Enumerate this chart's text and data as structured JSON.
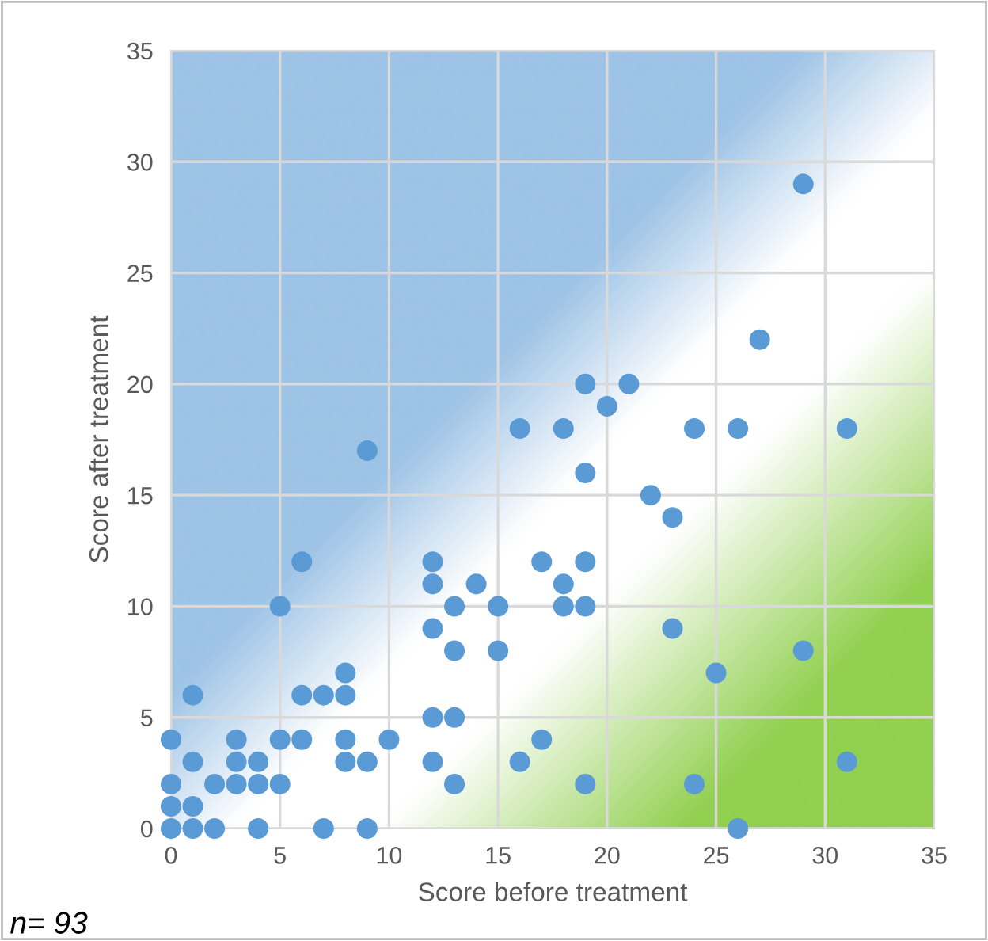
{
  "chart_data": {
    "type": "scatter",
    "xlabel": "Score before treatment",
    "ylabel": "Score after treatment",
    "annotations": [
      "n= 93"
    ],
    "x": [
      0,
      0,
      0,
      0,
      1,
      1,
      1,
      1,
      2,
      2,
      3,
      3,
      3,
      4,
      4,
      4,
      5,
      5,
      5,
      6,
      6,
      6,
      7,
      7,
      8,
      8,
      8,
      8,
      9,
      9,
      9,
      10,
      12,
      12,
      12,
      12,
      12,
      13,
      13,
      13,
      13,
      14,
      15,
      15,
      16,
      16,
      17,
      17,
      18,
      18,
      18,
      19,
      19,
      19,
      19,
      19,
      20,
      21,
      22,
      23,
      23,
      24,
      24,
      25,
      26,
      26,
      27,
      29,
      29,
      31,
      31
    ],
    "series": [
      {
        "color": "#5b9bd5",
        "values": [
          0,
          1,
          2,
          4,
          0,
          1,
          3,
          6,
          0,
          2,
          2,
          3,
          4,
          0,
          2,
          3,
          2,
          4,
          10,
          4,
          6,
          12,
          0,
          6,
          3,
          4,
          6,
          7,
          0,
          3,
          17,
          4,
          3,
          5,
          9,
          11,
          12,
          2,
          5,
          8,
          10,
          11,
          8,
          10,
          3,
          18,
          4,
          12,
          10,
          11,
          18,
          2,
          10,
          12,
          16,
          20,
          19,
          20,
          15,
          9,
          14,
          2,
          18,
          7,
          0,
          18,
          22,
          8,
          29,
          3,
          18
        ]
      }
    ],
    "marker": "circle",
    "xlim": [
      0,
      35
    ],
    "ylim": [
      0,
      35
    ],
    "xticks": [
      0,
      5,
      10,
      15,
      20,
      25,
      30,
      35
    ],
    "yticks": [
      0,
      5,
      10,
      15,
      20,
      25,
      30,
      35
    ],
    "grid": true,
    "legend": false
  }
}
